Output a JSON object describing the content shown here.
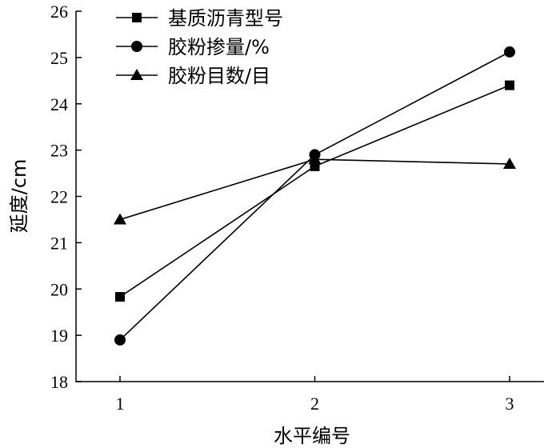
{
  "chart_data": {
    "type": "line",
    "x": [
      1,
      2,
      3
    ],
    "xticks": [
      "1",
      "2",
      "3"
    ],
    "xlabel": "水平编号",
    "ylabel": "延度/cm",
    "ylim": [
      18,
      26
    ],
    "yticks": [
      18,
      19,
      20,
      21,
      22,
      23,
      24,
      25,
      26
    ],
    "grid": false,
    "legend_position": "top-left",
    "series": [
      {
        "name": "基质沥青型号",
        "marker": "square",
        "values": [
          19.83,
          22.65,
          24.4
        ]
      },
      {
        "name": "胶粉掺量/%",
        "marker": "circle",
        "values": [
          18.9,
          22.9,
          25.12
        ]
      },
      {
        "name": "胶粉目数/目",
        "marker": "triangle",
        "values": [
          21.5,
          22.8,
          22.7
        ]
      }
    ]
  }
}
